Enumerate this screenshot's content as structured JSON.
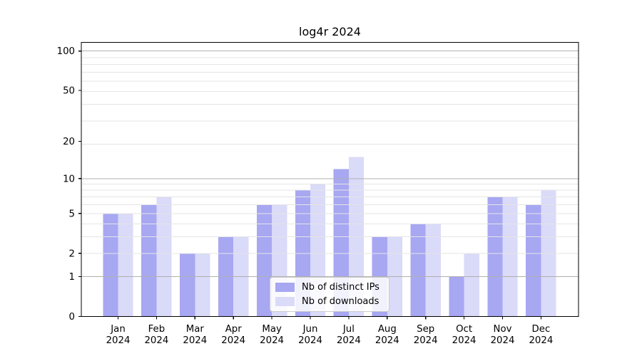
{
  "chart_data": {
    "type": "bar",
    "title": "log4r 2024",
    "categories": [
      "Jan",
      "Feb",
      "Mar",
      "Apr",
      "May",
      "Jun",
      "Jul",
      "Aug",
      "Sep",
      "Oct",
      "Nov",
      "Dec"
    ],
    "x_tick_year": "2024",
    "series": [
      {
        "name": "Nb of distinct IPs",
        "color": "#a7a7f2",
        "values": [
          5,
          6,
          2,
          3,
          6,
          8,
          12,
          3,
          4,
          1,
          7,
          6
        ]
      },
      {
        "name": "Nb of downloads",
        "color": "#dadaf9",
        "values": [
          5,
          7,
          2,
          3,
          6,
          9,
          15,
          3,
          4,
          2,
          7,
          8
        ]
      }
    ],
    "yscale": "log1p",
    "y_ticks": [
      0,
      1,
      2,
      5,
      10,
      20,
      50,
      100
    ],
    "ylim": [
      0,
      116
    ],
    "grid": true,
    "legend_position": "lower center",
    "colors": {
      "major_grid": "#b0b0b0",
      "minor_grid": "#e5e5e5",
      "spine": "#000000",
      "tick_text": "#000000"
    }
  }
}
